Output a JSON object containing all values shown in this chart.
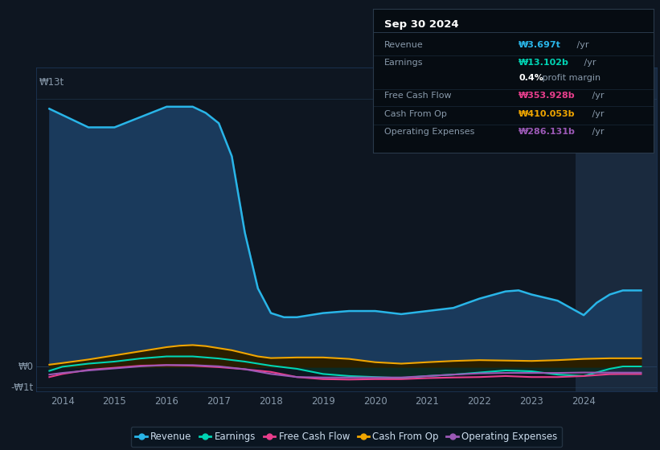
{
  "bg_color": "#0e1621",
  "plot_bg_color": "#0e1621",
  "title": "Sep 30 2024",
  "info_box_bg": "#060c12",
  "info_box_border": "#2a3a4a",
  "highlight_bg": "#1a2a3e",
  "ylabel_top": "₩13t",
  "ylabel_zero": "₩0",
  "ylabel_neg": "-₩1t",
  "ylim": [
    -1.2,
    14.5
  ],
  "xlim": [
    2013.5,
    2025.4
  ],
  "xticks": [
    2014,
    2015,
    2016,
    2017,
    2018,
    2019,
    2020,
    2021,
    2022,
    2023,
    2024
  ],
  "highlight_x_start": 2023.85,
  "highlight_x_end": 2025.4,
  "revenue_x": [
    2013.75,
    2014.0,
    2014.5,
    2015.0,
    2015.5,
    2016.0,
    2016.5,
    2016.75,
    2017.0,
    2017.25,
    2017.5,
    2017.75,
    2018.0,
    2018.25,
    2018.5,
    2018.75,
    2019.0,
    2019.5,
    2020.0,
    2020.5,
    2021.0,
    2021.5,
    2022.0,
    2022.5,
    2022.75,
    2023.0,
    2023.5,
    2023.75,
    2024.0,
    2024.25,
    2024.5,
    2024.75,
    2025.1
  ],
  "revenue_y": [
    12.5,
    12.2,
    11.6,
    11.6,
    12.1,
    12.6,
    12.6,
    12.3,
    11.8,
    10.2,
    6.5,
    3.8,
    2.6,
    2.4,
    2.4,
    2.5,
    2.6,
    2.7,
    2.7,
    2.55,
    2.7,
    2.85,
    3.3,
    3.65,
    3.7,
    3.5,
    3.2,
    2.85,
    2.5,
    3.1,
    3.5,
    3.697,
    3.697
  ],
  "earnings_x": [
    2013.75,
    2014.0,
    2014.5,
    2015.0,
    2015.5,
    2016.0,
    2016.5,
    2017.0,
    2017.5,
    2018.0,
    2018.5,
    2019.0,
    2019.5,
    2020.0,
    2020.5,
    2021.0,
    2021.5,
    2022.0,
    2022.5,
    2023.0,
    2023.5,
    2024.0,
    2024.5,
    2024.75,
    2025.1
  ],
  "earnings_y": [
    -0.2,
    0.0,
    0.15,
    0.25,
    0.4,
    0.5,
    0.5,
    0.4,
    0.25,
    0.05,
    -0.1,
    -0.35,
    -0.45,
    -0.5,
    -0.55,
    -0.45,
    -0.38,
    -0.28,
    -0.18,
    -0.22,
    -0.38,
    -0.45,
    -0.1,
    0.013,
    0.013
  ],
  "fcf_x": [
    2013.75,
    2014.0,
    2014.5,
    2015.0,
    2015.5,
    2016.0,
    2016.5,
    2017.0,
    2017.5,
    2018.0,
    2018.5,
    2019.0,
    2019.5,
    2020.0,
    2020.5,
    2021.0,
    2021.5,
    2022.0,
    2022.5,
    2023.0,
    2023.5,
    2024.0,
    2024.5,
    2024.75,
    2025.1
  ],
  "fcf_y": [
    -0.5,
    -0.35,
    -0.15,
    -0.05,
    0.05,
    0.08,
    0.05,
    -0.02,
    -0.12,
    -0.25,
    -0.5,
    -0.6,
    -0.62,
    -0.6,
    -0.6,
    -0.55,
    -0.52,
    -0.5,
    -0.45,
    -0.5,
    -0.5,
    -0.45,
    -0.36,
    -0.354,
    -0.354
  ],
  "cop_x": [
    2013.75,
    2014.0,
    2014.5,
    2015.0,
    2015.25,
    2015.5,
    2015.75,
    2016.0,
    2016.25,
    2016.5,
    2016.75,
    2017.0,
    2017.25,
    2017.5,
    2017.75,
    2018.0,
    2018.5,
    2019.0,
    2019.5,
    2020.0,
    2020.5,
    2021.0,
    2021.5,
    2022.0,
    2022.5,
    2023.0,
    2023.5,
    2024.0,
    2024.5,
    2024.75,
    2025.1
  ],
  "cop_y": [
    0.1,
    0.18,
    0.35,
    0.55,
    0.65,
    0.75,
    0.85,
    0.95,
    1.02,
    1.05,
    1.0,
    0.9,
    0.8,
    0.65,
    0.5,
    0.42,
    0.45,
    0.45,
    0.38,
    0.22,
    0.15,
    0.22,
    0.28,
    0.32,
    0.3,
    0.28,
    0.32,
    0.38,
    0.41,
    0.41,
    0.41
  ],
  "opex_x": [
    2013.75,
    2014.0,
    2014.5,
    2015.0,
    2015.5,
    2016.0,
    2016.5,
    2017.0,
    2017.5,
    2018.0,
    2018.5,
    2019.0,
    2019.5,
    2020.0,
    2020.5,
    2021.0,
    2021.5,
    2022.0,
    2022.5,
    2023.0,
    2023.5,
    2024.0,
    2024.5,
    2024.75,
    2025.1
  ],
  "opex_y": [
    -0.38,
    -0.3,
    -0.18,
    -0.08,
    0.02,
    0.08,
    0.08,
    0.02,
    -0.12,
    -0.35,
    -0.5,
    -0.52,
    -0.52,
    -0.52,
    -0.52,
    -0.45,
    -0.38,
    -0.32,
    -0.3,
    -0.3,
    -0.3,
    -0.28,
    -0.285,
    -0.286,
    -0.286
  ],
  "revenue_color": "#29b5e8",
  "revenue_fill": "#1a3a5c",
  "earnings_color": "#00d4b4",
  "earnings_fill": "#0a2a25",
  "fcf_color": "#e83e8c",
  "cop_color": "#f0a500",
  "cop_fill": "#2a1e00",
  "opex_color": "#9b59b6",
  "legend_items": [
    {
      "label": "Revenue",
      "color": "#29b5e8"
    },
    {
      "label": "Earnings",
      "color": "#00d4b4"
    },
    {
      "label": "Free Cash Flow",
      "color": "#e83e8c"
    },
    {
      "label": "Cash From Op",
      "color": "#f0a500"
    },
    {
      "label": "Operating Expenses",
      "color": "#9b59b6"
    }
  ],
  "info_rows": [
    {
      "label": "Revenue",
      "value": "₩3.697t",
      "suffix": " /yr",
      "value_color": "#29b5e8",
      "sub": null
    },
    {
      "label": "Earnings",
      "value": "₩13.102b",
      "suffix": " /yr",
      "value_color": "#00d4b4",
      "sub": "0.4% profit margin"
    },
    {
      "label": "Free Cash Flow",
      "value": "₩353.928b",
      "suffix": " /yr",
      "value_color": "#e83e8c",
      "sub": null
    },
    {
      "label": "Cash From Op",
      "value": "₩410.053b",
      "suffix": " /yr",
      "value_color": "#f0a500",
      "sub": null
    },
    {
      "label": "Operating Expenses",
      "value": "₩286.131b",
      "suffix": " /yr",
      "value_color": "#9b59b6",
      "sub": null
    }
  ]
}
